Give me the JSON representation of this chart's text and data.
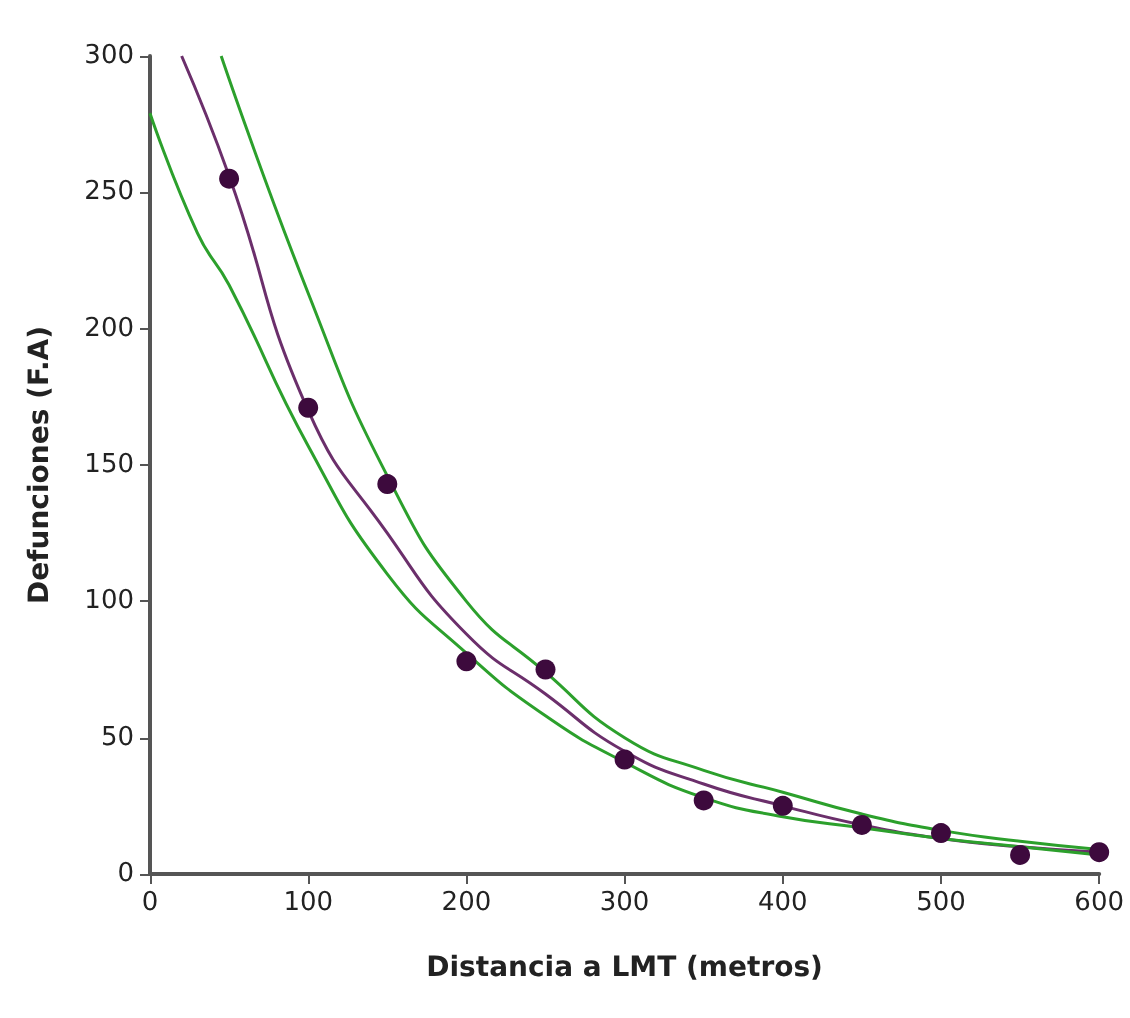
{
  "chart_data": {
    "type": "scatter",
    "xlabel": "Distancia a LMT (metros)",
    "ylabel": "Defunciones (F.A)",
    "xlim": [
      0,
      600
    ],
    "xticks": [
      0,
      100,
      200,
      300,
      400,
      500,
      600
    ],
    "ylim": [
      0,
      300
    ],
    "yticks": [
      0,
      50,
      100,
      150,
      200,
      250,
      300
    ],
    "grid": false,
    "marker": "circle",
    "series": [
      {
        "type": "line",
        "color": "#6b2f6b",
        "marker": "none",
        "x": [
          20,
          50,
          100,
          150,
          200,
          250,
          300,
          350,
          400,
          450,
          500,
          550,
          600
        ],
        "values": [
          300,
          256,
          170,
          125,
          88,
          66,
          45,
          33,
          25,
          18,
          13,
          10,
          8
        ]
      },
      {
        "type": "line",
        "color": "#2ca02c",
        "marker": "none",
        "x": [
          45,
          100,
          150,
          200,
          250,
          300,
          350,
          400,
          450,
          500,
          550,
          600
        ],
        "values": [
          300,
          213,
          146,
          100,
          74,
          50,
          38,
          30,
          22,
          16,
          12,
          9
        ]
      },
      {
        "type": "line",
        "color": "#2ca02c",
        "marker": "none",
        "x": [
          0,
          30,
          50,
          100,
          150,
          200,
          250,
          300,
          350,
          400,
          450,
          500,
          550,
          600
        ],
        "values": [
          279,
          235,
          216,
          157,
          110,
          81,
          58,
          41,
          28,
          21,
          17,
          13,
          10,
          7
        ]
      },
      {
        "color": "#3d0a3d",
        "x": [
          50,
          100,
          150,
          200,
          250,
          300,
          350,
          400,
          450,
          500,
          550,
          600
        ],
        "values": [
          255,
          171,
          143,
          78,
          75,
          42,
          27,
          25,
          18,
          15,
          7,
          8
        ]
      }
    ]
  }
}
